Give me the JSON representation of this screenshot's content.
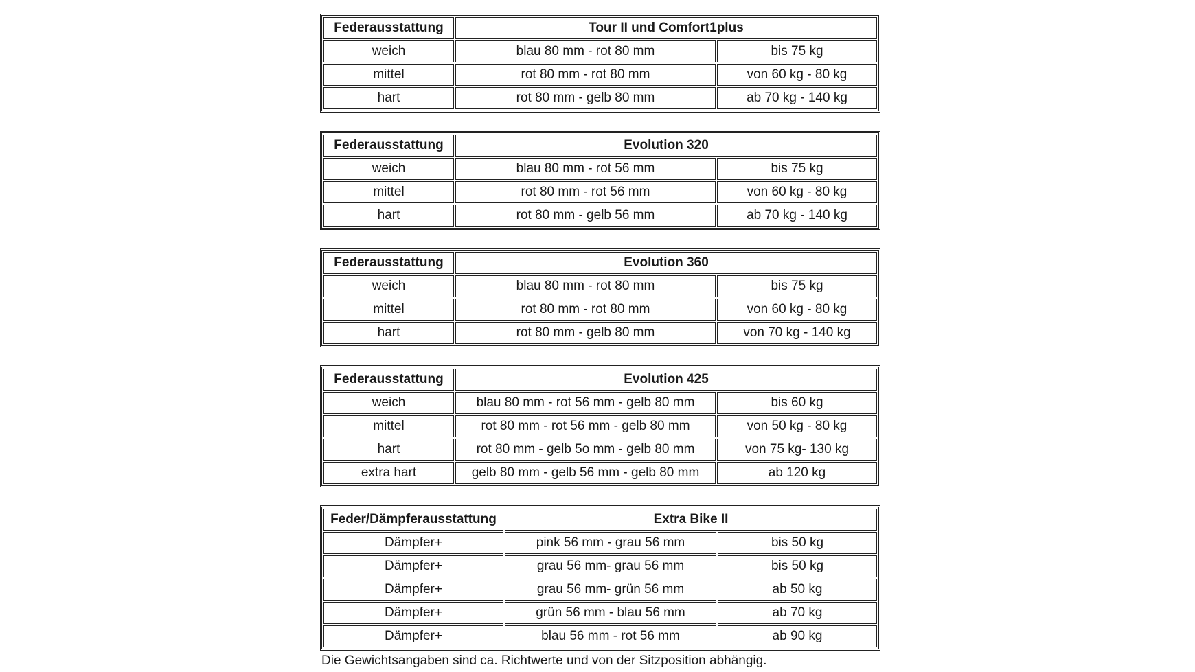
{
  "tables": [
    {
      "header": [
        "Federausstattung",
        "Tour II und Comfort1plus"
      ],
      "rows": [
        [
          "weich",
          "blau 80 mm - rot 80 mm",
          "bis 75 kg"
        ],
        [
          "mittel",
          "rot 80 mm - rot 80 mm",
          "von 60 kg - 80 kg"
        ],
        [
          "hart",
          "rot 80 mm - gelb 80 mm",
          "ab 70 kg - 140 kg"
        ]
      ]
    },
    {
      "header": [
        "Federausstattung",
        "Evolution 320"
      ],
      "rows": [
        [
          "weich",
          "blau 80 mm - rot 56 mm",
          "bis 75 kg"
        ],
        [
          "mittel",
          "rot 80 mm - rot 56 mm",
          "von 60 kg - 80 kg"
        ],
        [
          "hart",
          "rot 80 mm - gelb 56 mm",
          "ab 70 kg - 140 kg"
        ]
      ]
    },
    {
      "header": [
        "Federausstattung",
        "Evolution 360"
      ],
      "rows": [
        [
          "weich",
          "blau 80 mm - rot 80 mm",
          "bis 75 kg"
        ],
        [
          "mittel",
          "rot 80 mm - rot 80 mm",
          "von 60 kg - 80 kg"
        ],
        [
          "hart",
          "rot 80 mm - gelb 80 mm",
          "von 70 kg - 140 kg"
        ]
      ]
    },
    {
      "header": [
        "Federausstattung",
        "Evolution 425"
      ],
      "rows": [
        [
          "weich",
          "blau 80 mm - rot 56 mm - gelb 80 mm",
          "bis 60 kg"
        ],
        [
          "mittel",
          "rot 80 mm - rot 56 mm - gelb 80 mm",
          "von 50 kg - 80 kg"
        ],
        [
          "hart",
          "rot 80 mm - gelb 5o mm - gelb 80 mm",
          "von 75 kg- 130 kg"
        ],
        [
          "extra hart",
          "gelb 80 mm - gelb 56 mm - gelb 80 mm",
          "ab 120 kg"
        ]
      ]
    },
    {
      "header": [
        "Feder/Dämpferausstattung",
        "Extra Bike II"
      ],
      "rows": [
        [
          "Dämpfer+",
          "pink 56 mm - grau 56 mm",
          "bis 50 kg"
        ],
        [
          "Dämpfer+",
          "grau 56 mm- grau 56 mm",
          "bis 50 kg"
        ],
        [
          "Dämpfer+",
          "grau 56 mm- grün 56 mm",
          "ab 50 kg"
        ],
        [
          "Dämpfer+",
          "grün 56 mm - blau 56 mm",
          "ab 70 kg"
        ],
        [
          "Dämpfer+",
          "blau 56 mm - rot 56 mm",
          "ab 90 kg"
        ]
      ]
    }
  ],
  "footnote": "Die Gewichtsangaben sind ca. Richtwerte und von der Sitzposition abhängig."
}
